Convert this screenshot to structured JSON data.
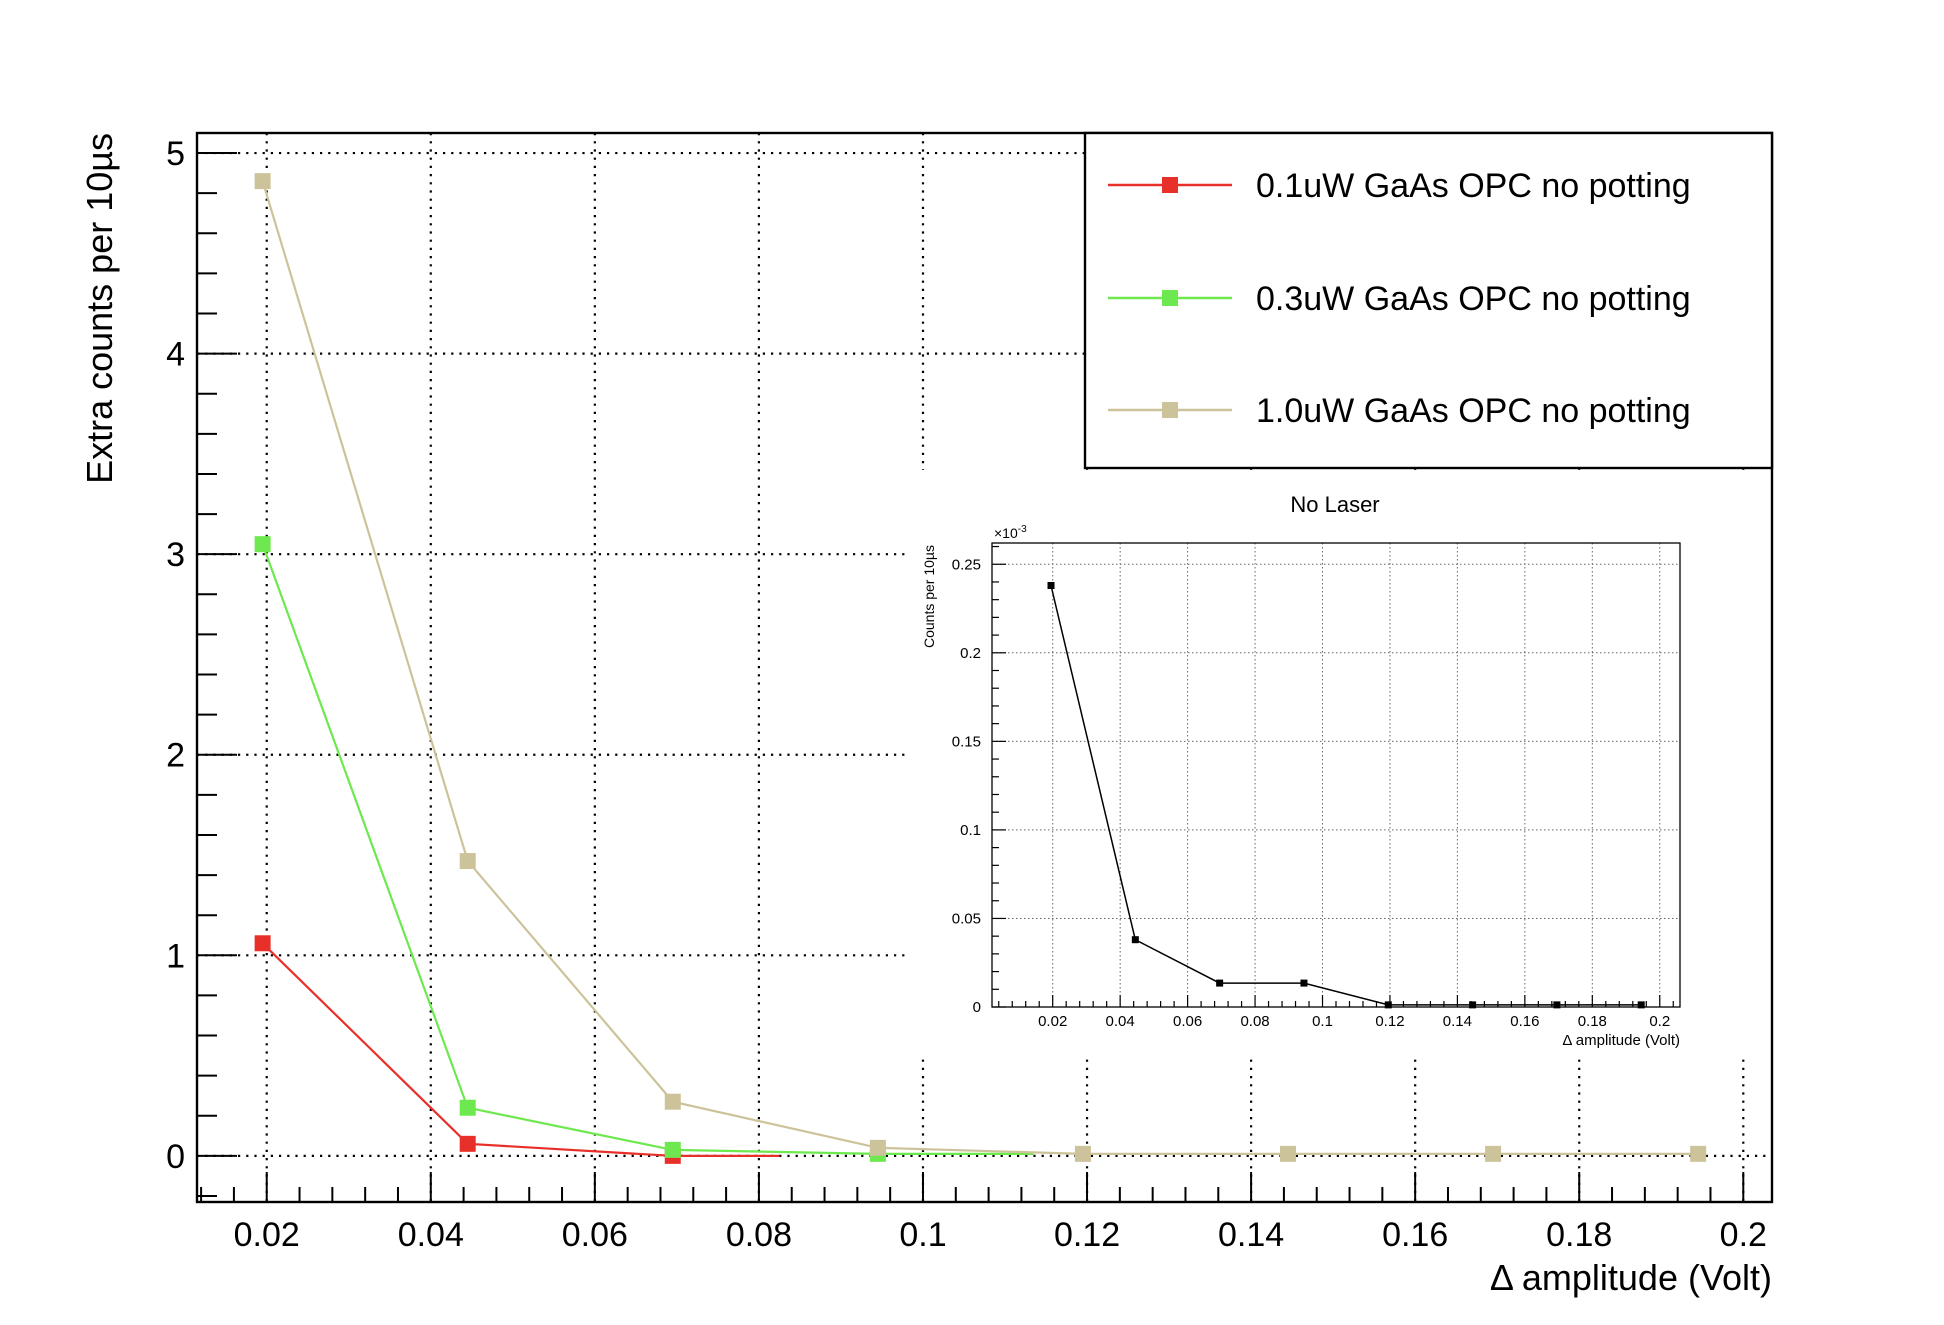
{
  "chart_data": [
    {
      "id": "main",
      "type": "line",
      "title": "",
      "xlabel": "Δ amplitude (Volt)",
      "ylabel": "Extra counts per 10µs",
      "xlim": [
        0.0115,
        0.2035
      ],
      "ylim": [
        -0.23,
        5.1
      ],
      "grid": true,
      "legend_position": "top-right",
      "xticks": [
        0.02,
        0.04,
        0.06,
        0.08,
        0.1,
        0.12,
        0.14,
        0.16,
        0.18,
        0.2
      ],
      "xtick_labels": [
        "0.02",
        "0.04",
        "0.06",
        "0.08",
        "0.1",
        "0.12",
        "0.14",
        "0.16",
        "0.18",
        "0.2"
      ],
      "yticks": [
        0,
        1,
        2,
        3,
        4,
        5
      ],
      "ytick_labels": [
        "0",
        "1",
        "2",
        "3",
        "4",
        "5"
      ],
      "series": [
        {
          "name": "0.1uW GaAs OPC no potting",
          "color": "#e8302a",
          "x": [
            0.0195,
            0.0445,
            0.0695,
            0.0825
          ],
          "y": [
            1.06,
            0.06,
            0.0,
            0.0
          ],
          "markers": [
            true,
            true,
            true,
            false
          ]
        },
        {
          "name": "0.3uW GaAs OPC no potting",
          "color": "#6ee84f",
          "x": [
            0.0195,
            0.0445,
            0.0695,
            0.0945,
            0.1135
          ],
          "y": [
            3.05,
            0.24,
            0.03,
            0.01,
            0.01
          ],
          "markers": [
            true,
            true,
            true,
            true,
            false
          ]
        },
        {
          "name": "1.0uW GaAs OPC no potting",
          "color": "#cdc39a",
          "x": [
            0.0195,
            0.0445,
            0.0695,
            0.0945,
            0.1195,
            0.1445,
            0.1695,
            0.1945
          ],
          "y": [
            4.86,
            1.47,
            0.27,
            0.04,
            0.01,
            0.01,
            0.01,
            0.01
          ],
          "markers": [
            true,
            true,
            true,
            true,
            true,
            true,
            true,
            true
          ]
        }
      ]
    },
    {
      "id": "inset",
      "type": "line",
      "title": "No Laser",
      "xlabel": "Δ amplitude (Volt)",
      "ylabel": "Counts per 10µs",
      "y_multiplier": "×10",
      "y_multiplier_exp": "-3",
      "xlim": [
        0.002,
        0.206
      ],
      "ylim": [
        0,
        0.262
      ],
      "grid": true,
      "xticks": [
        0.02,
        0.04,
        0.06,
        0.08,
        0.1,
        0.12,
        0.14,
        0.16,
        0.18,
        0.2
      ],
      "xtick_labels": [
        "0.02",
        "0.04",
        "0.06",
        "0.08",
        "0.1",
        "0.12",
        "0.14",
        "0.16",
        "0.18",
        "0.2"
      ],
      "yticks": [
        0,
        0.05,
        0.1,
        0.15,
        0.2,
        0.25
      ],
      "ytick_labels": [
        "0",
        "0.05",
        "0.1",
        "0.15",
        "0.2",
        "0.25"
      ],
      "series": [
        {
          "color": "#000000",
          "x": [
            0.0195,
            0.0445,
            0.0695,
            0.0945,
            0.1195,
            0.1445,
            0.1695,
            0.1945
          ],
          "y": [
            0.238,
            0.038,
            0.0135,
            0.0135,
            0.0012,
            0.0012,
            0.0012,
            0.0012
          ],
          "markers": [
            true,
            true,
            true,
            true,
            true,
            true,
            true,
            true
          ]
        }
      ]
    }
  ]
}
